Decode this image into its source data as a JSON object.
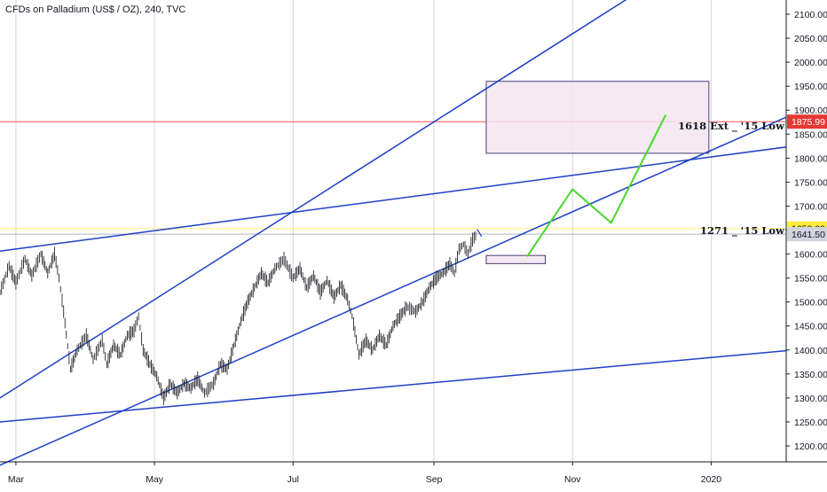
{
  "chart_data": {
    "type": "line",
    "title": "CFDs on Palladium (US$ / OZ), 240, TVC",
    "x_axis": {
      "ticks": [
        "Mar",
        "May",
        "Jul",
        "Sep",
        "Nov",
        "2020"
      ]
    },
    "y_axis": {
      "range": [
        1160,
        2120
      ],
      "ticks": [
        1200,
        1250,
        1300,
        1350,
        1400,
        1450,
        1500,
        1550,
        1600,
        1650,
        1700,
        1750,
        1800,
        1850,
        1900,
        1950,
        2000,
        2050,
        2100
      ]
    },
    "price_tags": [
      {
        "value": "1875.99",
        "color": "#e53935"
      },
      {
        "value": "1653.29",
        "color": "#ffeb3b"
      },
      {
        "value": "1641.50",
        "color": "#b2b5be"
      }
    ],
    "horizontal_lines": [
      {
        "value": 1875.99,
        "color": "#ff5252"
      },
      {
        "value": 1653.29,
        "color": "#fff176"
      },
      {
        "value": 1641.5,
        "color": "#b2b5be"
      }
    ],
    "annotations": [
      {
        "text": "1618 Ext _ '15 Low"
      },
      {
        "text": "1271 _ '15 Low"
      }
    ],
    "series": [
      {
        "values": [
          [
            "2019-02-22",
            1520
          ],
          [
            "2019-02-26",
            1575
          ],
          [
            "2019-03-01",
            1540
          ],
          [
            "2019-03-05",
            1590
          ],
          [
            "2019-03-08",
            1555
          ],
          [
            "2019-03-12",
            1600
          ],
          [
            "2019-03-15",
            1560
          ],
          [
            "2019-03-18",
            1600
          ],
          [
            "2019-03-20",
            1550
          ],
          [
            "2019-03-22",
            1480
          ],
          [
            "2019-03-25",
            1360
          ],
          [
            "2019-03-28",
            1400
          ],
          [
            "2019-04-01",
            1430
          ],
          [
            "2019-04-04",
            1380
          ],
          [
            "2019-04-08",
            1420
          ],
          [
            "2019-04-10",
            1370
          ],
          [
            "2019-04-13",
            1410
          ],
          [
            "2019-04-16",
            1390
          ],
          [
            "2019-04-19",
            1430
          ],
          [
            "2019-04-22",
            1440
          ],
          [
            "2019-04-24",
            1470
          ],
          [
            "2019-04-26",
            1400
          ],
          [
            "2019-04-29",
            1370
          ],
          [
            "2019-05-02",
            1345
          ],
          [
            "2019-05-05",
            1300
          ],
          [
            "2019-05-08",
            1330
          ],
          [
            "2019-05-11",
            1310
          ],
          [
            "2019-05-14",
            1330
          ],
          [
            "2019-05-17",
            1320
          ],
          [
            "2019-05-20",
            1340
          ],
          [
            "2019-05-23",
            1310
          ],
          [
            "2019-05-27",
            1330
          ],
          [
            "2019-05-30",
            1370
          ],
          [
            "2019-06-02",
            1360
          ],
          [
            "2019-06-05",
            1410
          ],
          [
            "2019-06-08",
            1460
          ],
          [
            "2019-06-11",
            1500
          ],
          [
            "2019-06-14",
            1530
          ],
          [
            "2019-06-17",
            1560
          ],
          [
            "2019-06-20",
            1540
          ],
          [
            "2019-06-23",
            1570
          ],
          [
            "2019-06-27",
            1590
          ],
          [
            "2019-07-01",
            1550
          ],
          [
            "2019-07-04",
            1570
          ],
          [
            "2019-07-07",
            1530
          ],
          [
            "2019-07-10",
            1555
          ],
          [
            "2019-07-13",
            1520
          ],
          [
            "2019-07-16",
            1545
          ],
          [
            "2019-07-19",
            1510
          ],
          [
            "2019-07-22",
            1535
          ],
          [
            "2019-07-25",
            1505
          ],
          [
            "2019-07-27",
            1470
          ],
          [
            "2019-07-30",
            1390
          ],
          [
            "2019-08-02",
            1420
          ],
          [
            "2019-08-05",
            1400
          ],
          [
            "2019-08-08",
            1430
          ],
          [
            "2019-08-11",
            1410
          ],
          [
            "2019-08-14",
            1450
          ],
          [
            "2019-08-17",
            1470
          ],
          [
            "2019-08-20",
            1490
          ],
          [
            "2019-08-24",
            1480
          ],
          [
            "2019-08-27",
            1500
          ],
          [
            "2019-08-30",
            1530
          ],
          [
            "2019-09-02",
            1550
          ],
          [
            "2019-09-05",
            1560
          ],
          [
            "2019-09-08",
            1580
          ],
          [
            "2019-09-10",
            1560
          ],
          [
            "2019-09-12",
            1610
          ],
          [
            "2019-09-14",
            1620
          ],
          [
            "2019-09-16",
            1600
          ],
          [
            "2019-09-18",
            1630
          ],
          [
            "2019-09-20",
            1641.5
          ]
        ]
      }
    ],
    "projection": {
      "values": [
        [
          "2019-10-12",
          1595
        ],
        [
          "2019-11-01",
          1735
        ],
        [
          "2019-11-18",
          1665
        ],
        [
          "2019-12-12",
          1890
        ]
      ],
      "color": "#4cd630"
    },
    "target_zone": {
      "x": [
        "2019-09-24",
        "2019-12-31"
      ],
      "y": [
        1810,
        1960
      ]
    },
    "entry_zone": {
      "x": [
        "2019-09-24",
        "2019-10-20"
      ],
      "y": [
        1580,
        1597
      ]
    },
    "trend_lines": [
      {
        "from": [
          "2019-02-22",
          1300
        ],
        "to": [
          "2019-12-31",
          2240
        ]
      },
      {
        "from": [
          "2019-02-22",
          1160
        ],
        "to": [
          "2020-02-22",
          1925
        ]
      },
      {
        "from": [
          "2019-02-22",
          1606
        ],
        "to": [
          "2020-03-01",
          1840
        ]
      },
      {
        "from": [
          "2019-02-22",
          1250
        ],
        "to": [
          "2020-03-01",
          1410
        ]
      }
    ],
    "vertical_grid": [
      "2019-03-01",
      "2019-05-01",
      "2019-07-01",
      "2019-09-01",
      "2019-11-01",
      "2020-01-01"
    ],
    "colors": {
      "trend": "#1e40c8",
      "zone_fill": "#f3e6ee",
      "zone_stroke": "#4a3c78",
      "price_bars": "#26282e",
      "grid": "#d1d4dc",
      "axis": "#131722"
    }
  }
}
